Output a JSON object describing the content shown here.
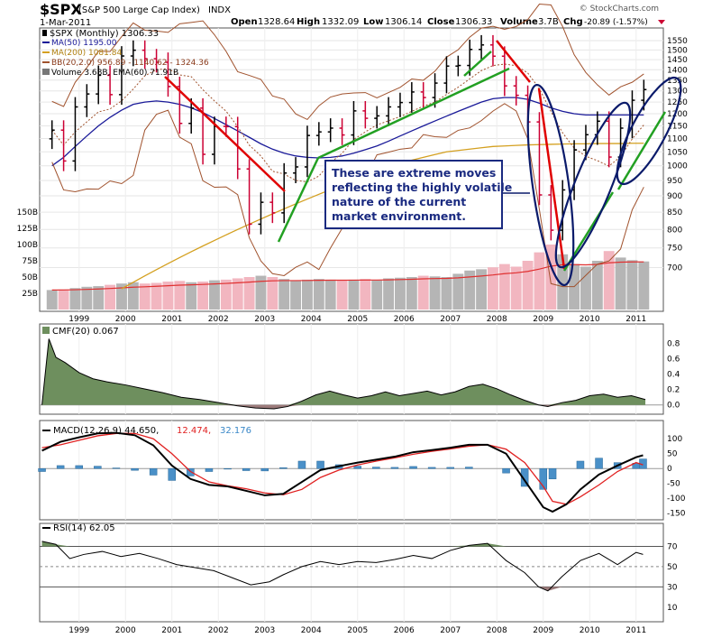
{
  "header": {
    "symbol": "$SPX",
    "name": "(S&P 500 Large Cap Index)",
    "exchange": "INDX",
    "date": "1-Mar-2011",
    "open_label": "Open",
    "open": "1328.64",
    "high_label": "High",
    "high": "1332.09",
    "low_label": "Low",
    "low": "1306.14",
    "close_label": "Close",
    "close": "1306.33",
    "volume_label": "Volume",
    "volume": "3.7B",
    "chg_label": "Chg",
    "chg": "-20.89 (-1.57%)",
    "watermark": "© StockCharts.com"
  },
  "legend": {
    "price": "$SPX (Monthly) 1306.33",
    "ma50": "MA(50) 1195.00",
    "ma200": "MA(200) 1081.84",
    "bb": "BB(20,2.0) 956.89 - 1140.62 - 1324.36",
    "volume": "Volume 3.68B, EMA(60) 71.91B"
  },
  "annotation": {
    "line1": "These are extreme moves",
    "line2": "reflecting the highly volatile",
    "line3": "nature of the current",
    "line4": "market environment."
  },
  "indicators": {
    "cmf": "CMF(20) 0.067",
    "macd_prefix": "MACD(12,26,9) 44.650,",
    "macd_signal": "12.474,",
    "macd_hist": "32.176",
    "rsi": "RSI(14) 62.05"
  },
  "colors": {
    "up": "#000000",
    "down": "#cc0033",
    "ma50": "#1a1a99",
    "ma200": "#d4a020",
    "bb": "#a0522d",
    "vol_up": "#b5b5b5",
    "vol_down": "#f2b6c0",
    "vol_ema": "#e03030",
    "cmf_fill": "#6e8f5e",
    "cmf_neg": "#9c7b7b",
    "macd_hist": "#4a90c8",
    "trend_red": "#e00000",
    "trend_green": "#22a022",
    "ellipse": "#0a1a6a",
    "annot_border": "#1a2a80"
  },
  "chart_data": [
    {
      "type": "line",
      "title": "$SPX (S&P 500 Large Cap Index) INDX",
      "series_name": "$SPX (Monthly)",
      "x_labels": [
        "1999",
        "2000",
        "2001",
        "2002",
        "2003",
        "2004",
        "2005",
        "2006",
        "2007",
        "2008",
        "2009",
        "2010",
        "2011"
      ],
      "price_ticks": [
        700,
        750,
        800,
        850,
        900,
        950,
        1000,
        1050,
        1100,
        1150,
        1200,
        1250,
        1300,
        1350,
        1400,
        1450,
        1500,
        1550
      ],
      "volume_ticks": [
        "25B",
        "50B",
        "75B",
        "100B",
        "125B",
        "150B"
      ],
      "ylim": [
        650,
        1575
      ],
      "x": [
        "1998-06",
        "1998-09",
        "1998-12",
        "1999-03",
        "1999-06",
        "1999-09",
        "1999-12",
        "2000-03",
        "2000-06",
        "2000-09",
        "2000-12",
        "2001-03",
        "2001-06",
        "2001-09",
        "2001-12",
        "2002-03",
        "2002-06",
        "2002-09",
        "2002-12",
        "2003-03",
        "2003-06",
        "2003-09",
        "2003-12",
        "2004-03",
        "2004-06",
        "2004-09",
        "2004-12",
        "2005-03",
        "2005-06",
        "2005-09",
        "2005-12",
        "2006-03",
        "2006-06",
        "2006-09",
        "2006-12",
        "2007-03",
        "2007-06",
        "2007-09",
        "2007-12",
        "2008-03",
        "2008-06",
        "2008-09",
        "2008-12",
        "2009-03",
        "2009-06",
        "2009-09",
        "2009-12",
        "2010-03",
        "2010-06",
        "2010-09",
        "2010-12",
        "2011-03"
      ],
      "close": [
        1133,
        1017,
        1229,
        1286,
        1373,
        1283,
        1469,
        1499,
        1455,
        1437,
        1320,
        1160,
        1224,
        1041,
        1148,
        1147,
        989,
        815,
        880,
        848,
        975,
        996,
        1112,
        1126,
        1141,
        1114,
        1212,
        1181,
        1191,
        1229,
        1248,
        1295,
        1270,
        1336,
        1418,
        1421,
        1503,
        1527,
        1468,
        1323,
        1280,
        1166,
        903,
        798,
        919,
        1057,
        1115,
        1169,
        1031,
        1141,
        1258,
        1306
      ],
      "ma50": [
        1000,
        1030,
        1070,
        1110,
        1150,
        1185,
        1215,
        1240,
        1250,
        1255,
        1250,
        1240,
        1225,
        1205,
        1180,
        1155,
        1130,
        1105,
        1080,
        1060,
        1045,
        1035,
        1030,
        1028,
        1030,
        1035,
        1045,
        1058,
        1072,
        1090,
        1110,
        1130,
        1150,
        1170,
        1190,
        1210,
        1230,
        1250,
        1265,
        1270,
        1270,
        1262,
        1245,
        1225,
        1210,
        1200,
        1195,
        1195,
        1195,
        1195,
        1195,
        1195
      ],
      "ma200": [
        560,
        575,
        590,
        605,
        620,
        635,
        650,
        665,
        680,
        695,
        710,
        725,
        740,
        755,
        770,
        785,
        800,
        815,
        830,
        845,
        860,
        875,
        890,
        905,
        920,
        935,
        950,
        965,
        980,
        995,
        1010,
        1020,
        1030,
        1040,
        1050,
        1055,
        1060,
        1065,
        1070,
        1072,
        1074,
        1076,
        1077,
        1078,
        1079,
        1080,
        1080,
        1081,
        1081,
        1081,
        1082,
        1082
      ],
      "volume_B": [
        30,
        31,
        33,
        35,
        36,
        38,
        40,
        42,
        40,
        41,
        43,
        44,
        42,
        43,
        45,
        46,
        48,
        50,
        52,
        50,
        47,
        45,
        46,
        47,
        46,
        45,
        46,
        47,
        45,
        48,
        49,
        50,
        52,
        51,
        50,
        55,
        60,
        62,
        65,
        70,
        66,
        75,
        88,
        100,
        85,
        70,
        66,
        75,
        90,
        80,
        76,
        74
      ]
    },
    {
      "type": "area",
      "title": "CMF(20) 0.067",
      "y_ticks": [
        0.0,
        0.2,
        0.4,
        0.6,
        0.8
      ],
      "x": [
        1998.2,
        1998.35,
        1998.5,
        1998.7,
        1999.0,
        1999.3,
        1999.6,
        2000.0,
        2000.4,
        2000.8,
        2001.2,
        2001.6,
        2002.0,
        2002.4,
        2002.8,
        2003.2,
        2003.5,
        2003.8,
        2004.1,
        2004.4,
        2004.7,
        2005.0,
        2005.3,
        2005.6,
        2005.9,
        2006.2,
        2006.5,
        2006.8,
        2007.1,
        2007.4,
        2007.7,
        2008.0,
        2008.3,
        2008.6,
        2008.9,
        2009.1,
        2009.4,
        2009.7,
        2010.0,
        2010.3,
        2010.6,
        2010.9,
        2011.2
      ],
      "values": [
        0.0,
        0.86,
        0.62,
        0.55,
        0.42,
        0.34,
        0.3,
        0.26,
        0.21,
        0.16,
        0.1,
        0.07,
        0.03,
        -0.01,
        -0.04,
        -0.05,
        -0.02,
        0.05,
        0.13,
        0.18,
        0.13,
        0.09,
        0.12,
        0.17,
        0.12,
        0.15,
        0.18,
        0.13,
        0.17,
        0.24,
        0.27,
        0.21,
        0.13,
        0.06,
        0.0,
        -0.02,
        0.03,
        0.06,
        0.12,
        0.14,
        0.1,
        0.12,
        0.07
      ]
    },
    {
      "type": "line",
      "title": "MACD(12,26,9) 44.650, 12.474, 32.176",
      "y_ticks": [
        100,
        50,
        0,
        -50,
        -100,
        -150
      ],
      "x": [
        1998.2,
        1998.6,
        1999.0,
        1999.4,
        1999.8,
        2000.2,
        2000.6,
        2001.0,
        2001.4,
        2001.8,
        2002.2,
        2002.6,
        2003.0,
        2003.4,
        2003.8,
        2004.2,
        2004.6,
        2005.0,
        2005.4,
        2005.8,
        2006.2,
        2006.6,
        2007.0,
        2007.4,
        2007.8,
        2008.2,
        2008.6,
        2009.0,
        2009.2,
        2009.5,
        2009.8,
        2010.2,
        2010.6,
        2011.0,
        2011.15
      ],
      "macd": [
        60,
        90,
        105,
        118,
        120,
        112,
        78,
        10,
        -35,
        -55,
        -60,
        -75,
        -90,
        -85,
        -45,
        -5,
        8,
        20,
        30,
        40,
        55,
        62,
        70,
        80,
        80,
        50,
        -40,
        -130,
        -145,
        -120,
        -70,
        -20,
        10,
        38,
        44.65
      ],
      "signal": [
        70,
        80,
        95,
        110,
        118,
        118,
        100,
        50,
        -10,
        -45,
        -58,
        -68,
        -82,
        -88,
        -70,
        -30,
        -5,
        12,
        25,
        36,
        48,
        58,
        66,
        75,
        80,
        65,
        20,
        -60,
        -110,
        -120,
        -95,
        -55,
        -10,
        20,
        12.474
      ],
      "histogram": [
        -10,
        10,
        10,
        8,
        2,
        -6,
        -22,
        -40,
        -25,
        -10,
        -2,
        -7,
        -8,
        3,
        25,
        25,
        13,
        8,
        5,
        4,
        7,
        4,
        4,
        5,
        0,
        -15,
        -60,
        -70,
        -35,
        0,
        25,
        35,
        20,
        18,
        32.176
      ]
    },
    {
      "type": "line",
      "title": "RSI(14) 62.05",
      "y_ticks": [
        70,
        50,
        30,
        10
      ],
      "x": [
        1998.2,
        1998.5,
        1998.8,
        1999.1,
        1999.5,
        1999.9,
        2000.3,
        2000.7,
        2001.1,
        2001.5,
        2001.9,
        2002.3,
        2002.7,
        2003.1,
        2003.4,
        2003.8,
        2004.2,
        2004.6,
        2005.0,
        2005.4,
        2005.8,
        2006.2,
        2006.6,
        2007.0,
        2007.4,
        2007.8,
        2008.2,
        2008.6,
        2008.9,
        2009.1,
        2009.4,
        2009.8,
        2010.2,
        2010.6,
        2011.0,
        2011.15
      ],
      "values": [
        75,
        72,
        58,
        62,
        65,
        60,
        63,
        58,
        52,
        49,
        46,
        39,
        32,
        35,
        42,
        50,
        55,
        52,
        55,
        54,
        57,
        61,
        58,
        66,
        71,
        73,
        56,
        44,
        30,
        26,
        40,
        56,
        63,
        52,
        64,
        62.05
      ]
    }
  ]
}
